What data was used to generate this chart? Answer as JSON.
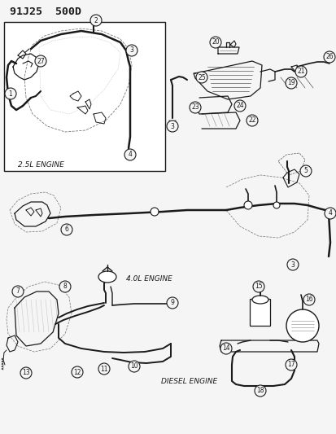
{
  "title": "91J25  500D",
  "bg_color": "#f5f5f5",
  "line_color": "#1a1a1a",
  "dash_color": "#555555",
  "labels": {
    "engine_25": "2.5L ENGINE",
    "engine_40": "4.0L ENGINE",
    "engine_diesel": "DIESEL ENGINE"
  },
  "nums_25": [
    1,
    2,
    3,
    4,
    27
  ],
  "nums_top_right": [
    19,
    20,
    21,
    22,
    23,
    24,
    25,
    26
  ],
  "nums_40": [
    3,
    4,
    5,
    6
  ],
  "nums_diesel_l": [
    7,
    8,
    9,
    10,
    11,
    12,
    13
  ],
  "nums_diesel_r": [
    14,
    15,
    16,
    17,
    18
  ]
}
